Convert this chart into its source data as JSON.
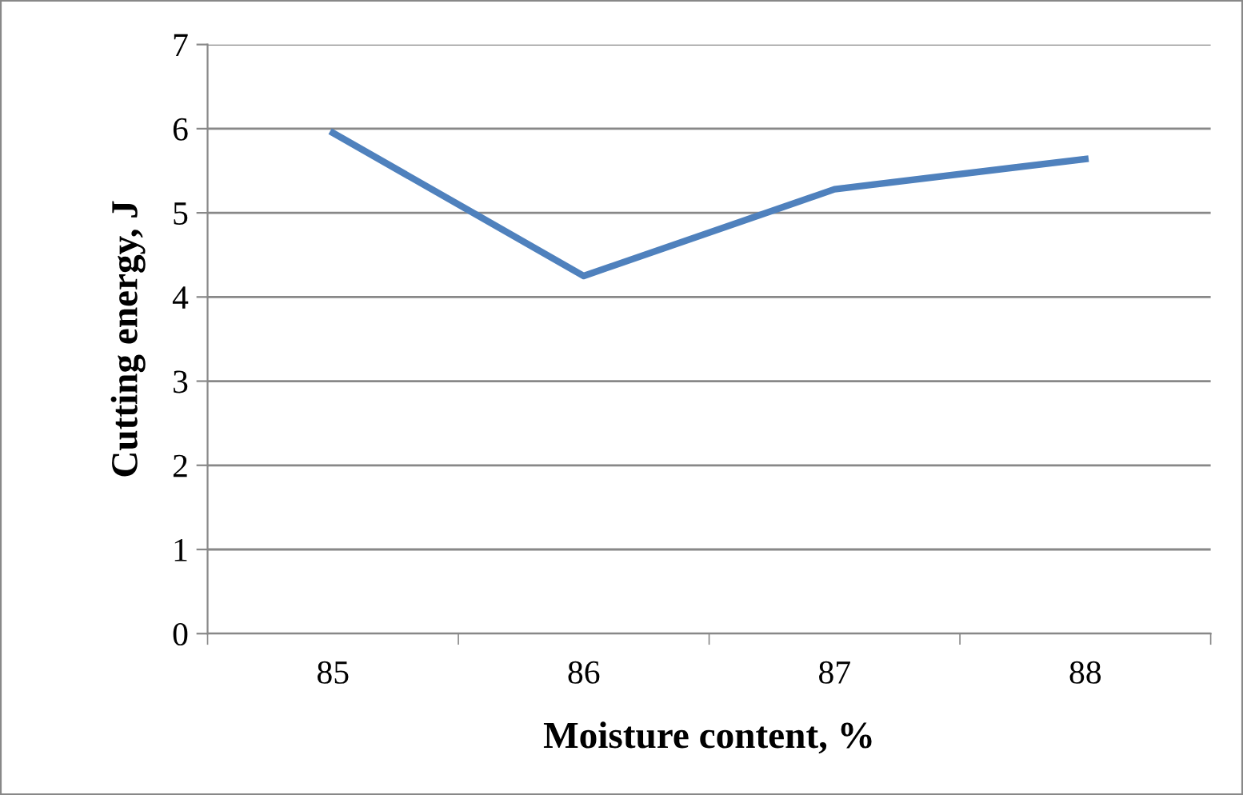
{
  "chart_data": {
    "type": "line",
    "xlabel": "Moisture content, %",
    "ylabel": "Cutting energy, J",
    "categories": [
      "85",
      "86",
      "87",
      "88"
    ],
    "series": [
      {
        "color": "#4f81bd",
        "values": [
          5.95,
          4.25,
          5.28,
          5.64
        ]
      }
    ],
    "ylim": [
      0,
      7
    ],
    "yticks": [
      0,
      1,
      2,
      3,
      4,
      5,
      6,
      7
    ],
    "grid": "y",
    "marker": "none",
    "line_style": "solid"
  }
}
